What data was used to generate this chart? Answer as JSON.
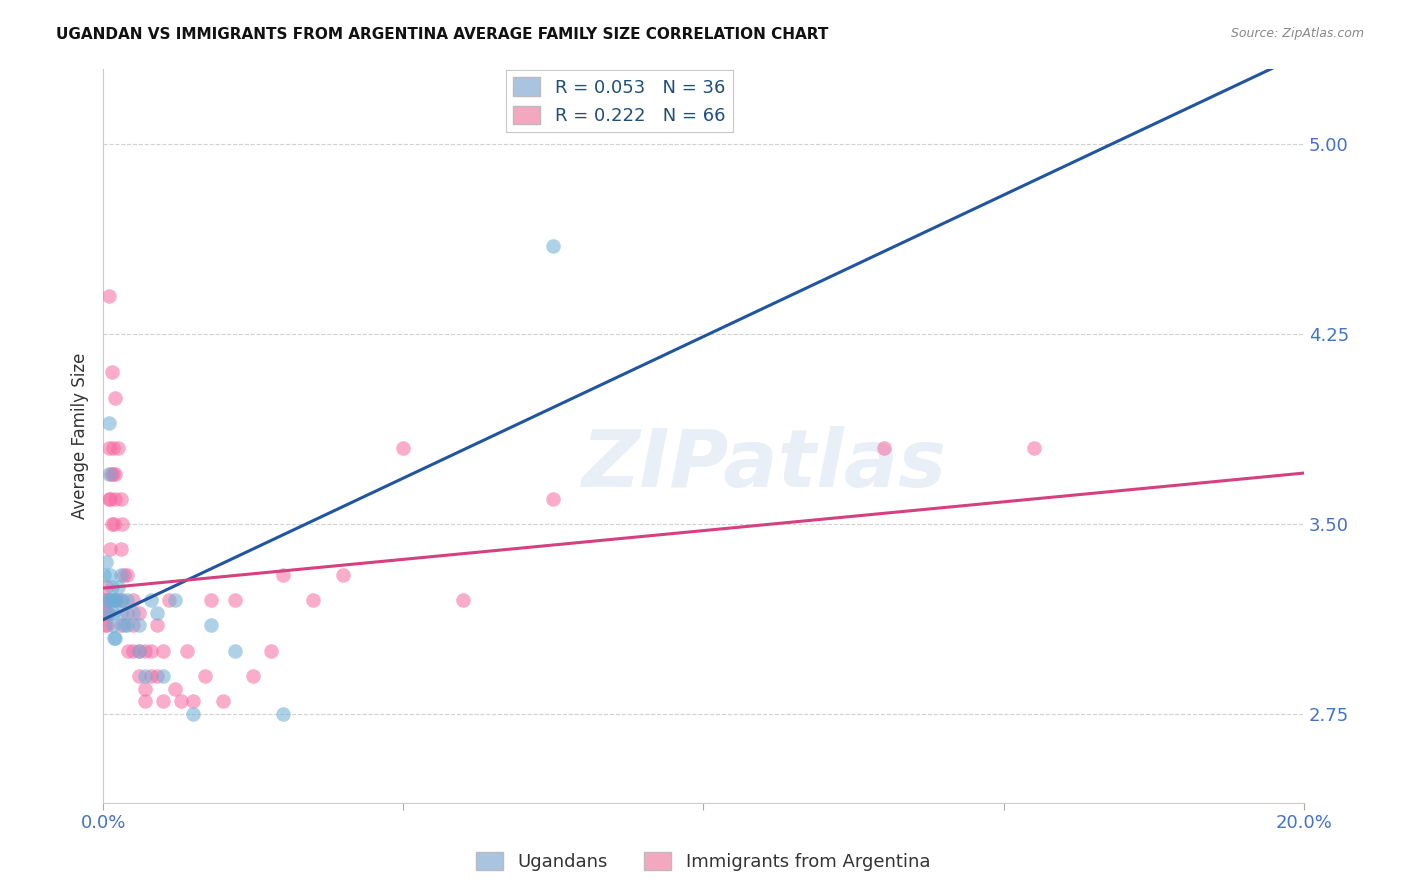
{
  "title": "UGANDAN VS IMMIGRANTS FROM ARGENTINA AVERAGE FAMILY SIZE CORRELATION CHART",
  "source": "Source: ZipAtlas.com",
  "ylabel": "Average Family Size",
  "yticks": [
    2.75,
    3.5,
    4.25,
    5.0
  ],
  "ytick_color": "#4472c4",
  "background_color": "#ffffff",
  "grid_color": "#cccccc",
  "legend1_label": "R = 0.053   N = 36",
  "legend2_label": "R = 0.222   N = 66",
  "legend1_color_box": "#a8c4e0",
  "legend2_color_box": "#f4a8c0",
  "ugandan_color": "#6baed6",
  "argentina_color": "#f768a1",
  "trendline_blue": "#2155a0",
  "trendline_pink": "#d44080",
  "watermark": "ZIPatlas",
  "ugandan_x": [
    0.0002,
    0.0005,
    0.0006,
    0.0008,
    0.001,
    0.001,
    0.0012,
    0.0012,
    0.0014,
    0.0015,
    0.0016,
    0.0017,
    0.0018,
    0.002,
    0.002,
    0.0022,
    0.0025,
    0.003,
    0.003,
    0.0032,
    0.0035,
    0.004,
    0.004,
    0.005,
    0.006,
    0.006,
    0.007,
    0.008,
    0.009,
    0.01,
    0.012,
    0.015,
    0.018,
    0.022,
    0.03,
    0.075
  ],
  "ugandan_y": [
    3.3,
    3.35,
    3.2,
    3.15,
    3.9,
    3.7,
    3.3,
    3.2,
    3.25,
    3.2,
    3.15,
    3.1,
    3.05,
    3.2,
    3.05,
    3.2,
    3.25,
    3.3,
    3.15,
    3.2,
    3.1,
    3.2,
    3.1,
    3.15,
    3.1,
    3.0,
    2.9,
    3.2,
    3.15,
    2.9,
    3.2,
    2.75,
    3.1,
    3.0,
    2.75,
    4.6
  ],
  "argentina_x": [
    0.0002,
    0.0003,
    0.0004,
    0.0005,
    0.0006,
    0.0007,
    0.0008,
    0.001,
    0.001,
    0.001,
    0.0012,
    0.0012,
    0.0013,
    0.0014,
    0.0015,
    0.0016,
    0.0017,
    0.0018,
    0.002,
    0.002,
    0.002,
    0.0022,
    0.0025,
    0.003,
    0.003,
    0.003,
    0.003,
    0.0032,
    0.0035,
    0.004,
    0.004,
    0.0042,
    0.005,
    0.005,
    0.005,
    0.006,
    0.006,
    0.006,
    0.007,
    0.007,
    0.007,
    0.008,
    0.008,
    0.009,
    0.009,
    0.01,
    0.01,
    0.011,
    0.012,
    0.013,
    0.014,
    0.015,
    0.017,
    0.018,
    0.02,
    0.022,
    0.025,
    0.028,
    0.03,
    0.035,
    0.04,
    0.05,
    0.06,
    0.075,
    0.13,
    0.155
  ],
  "argentina_y": [
    3.2,
    3.1,
    3.15,
    3.25,
    3.1,
    3.2,
    3.15,
    4.4,
    3.8,
    3.6,
    3.6,
    3.4,
    3.7,
    3.5,
    4.1,
    3.8,
    3.7,
    3.5,
    4.0,
    3.7,
    3.6,
    3.2,
    3.8,
    3.6,
    3.4,
    3.2,
    3.1,
    3.5,
    3.3,
    3.3,
    3.15,
    3.0,
    3.2,
    3.1,
    3.0,
    3.15,
    3.0,
    2.9,
    3.0,
    2.85,
    2.8,
    3.0,
    2.9,
    3.1,
    2.9,
    3.0,
    2.8,
    3.2,
    2.85,
    2.8,
    3.0,
    2.8,
    2.9,
    3.2,
    2.8,
    3.2,
    2.9,
    3.0,
    3.3,
    3.2,
    3.3,
    3.8,
    3.2,
    3.6,
    3.8,
    3.8
  ],
  "xlim": [
    0.0,
    0.2
  ],
  "ylim": [
    2.4,
    5.3
  ]
}
